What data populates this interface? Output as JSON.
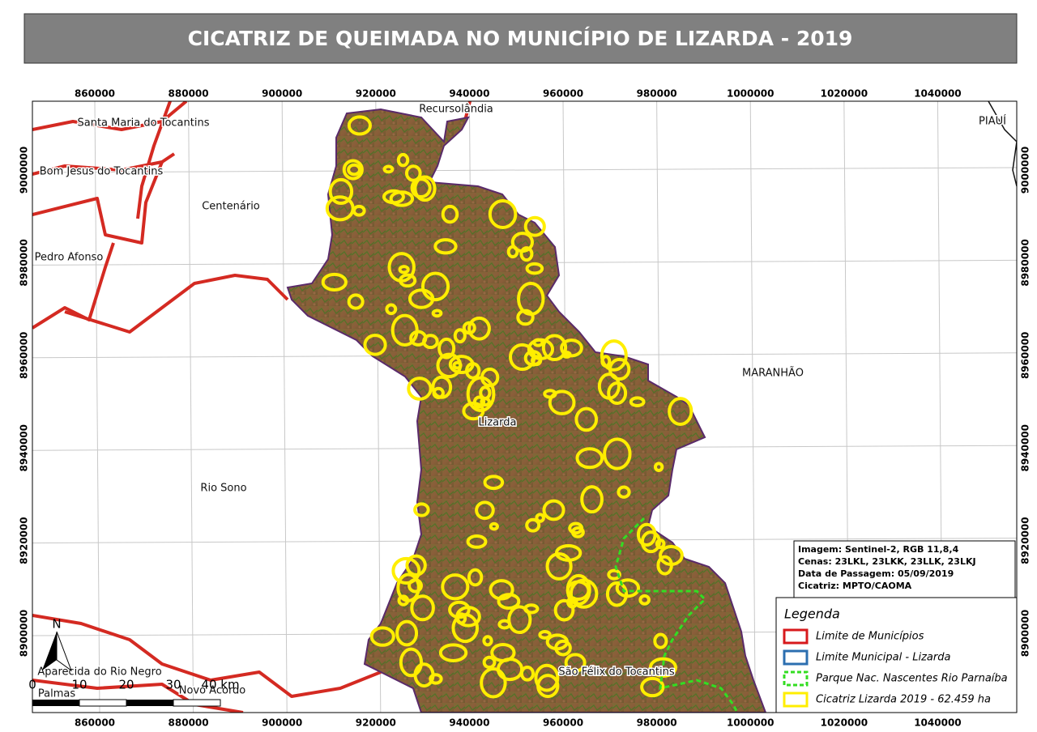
{
  "title": "CICATRIZ DE QUEIMADA NO MUNICÍPIO DE LIZARDA - 2019",
  "map": {
    "xlim": [
      846680,
      1056880
    ],
    "ylim": [
      8882870,
      9014860
    ],
    "xticks": [
      860000,
      880000,
      900000,
      920000,
      940000,
      960000,
      980000,
      1000000,
      1020000,
      1040000
    ],
    "yticks": [
      9000000,
      8980000,
      8960000,
      8940000,
      8920000,
      8900000
    ]
  },
  "places": [
    "Recursolândia",
    "Santa Maria do Tocantins",
    "Bom Jesus do Tocantins",
    "Centenário",
    "Pedro Afonso",
    "Lizarda",
    "MARANHÃO",
    "PIAUÍ",
    "Rio Sono",
    "Aparecida do Rio Negro",
    "Palmas",
    "Novo Acordo",
    "São Félix do Tocantins"
  ],
  "north": "N",
  "scale_labels": [
    "0",
    "10",
    "20",
    "30",
    "40 km"
  ],
  "info": [
    "Imagem: Sentinel-2, RGB 11,8,4",
    "Cenas: 23LKL, 23LKK, 23LLK, 23LKJ",
    "Data de Passagem: 05/09/2019",
    "Cicatriz: MPTO/CAOMA"
  ],
  "legend": {
    "title": "Legenda",
    "items": [
      {
        "label": "Limite de Municípios",
        "color": "#d7191c",
        "dashed": false
      },
      {
        "label": "Limite Municipal - Lizarda",
        "color": "#2c6fb0",
        "dashed": false
      },
      {
        "label": "Parque Nac. Nascentes Rio Parnaíba",
        "color": "#33dd22",
        "dashed": true
      },
      {
        "label": "Cicatriz Lizarda 2019 - 62.459 ha",
        "color": "#ffee00",
        "dashed": false
      }
    ]
  }
}
